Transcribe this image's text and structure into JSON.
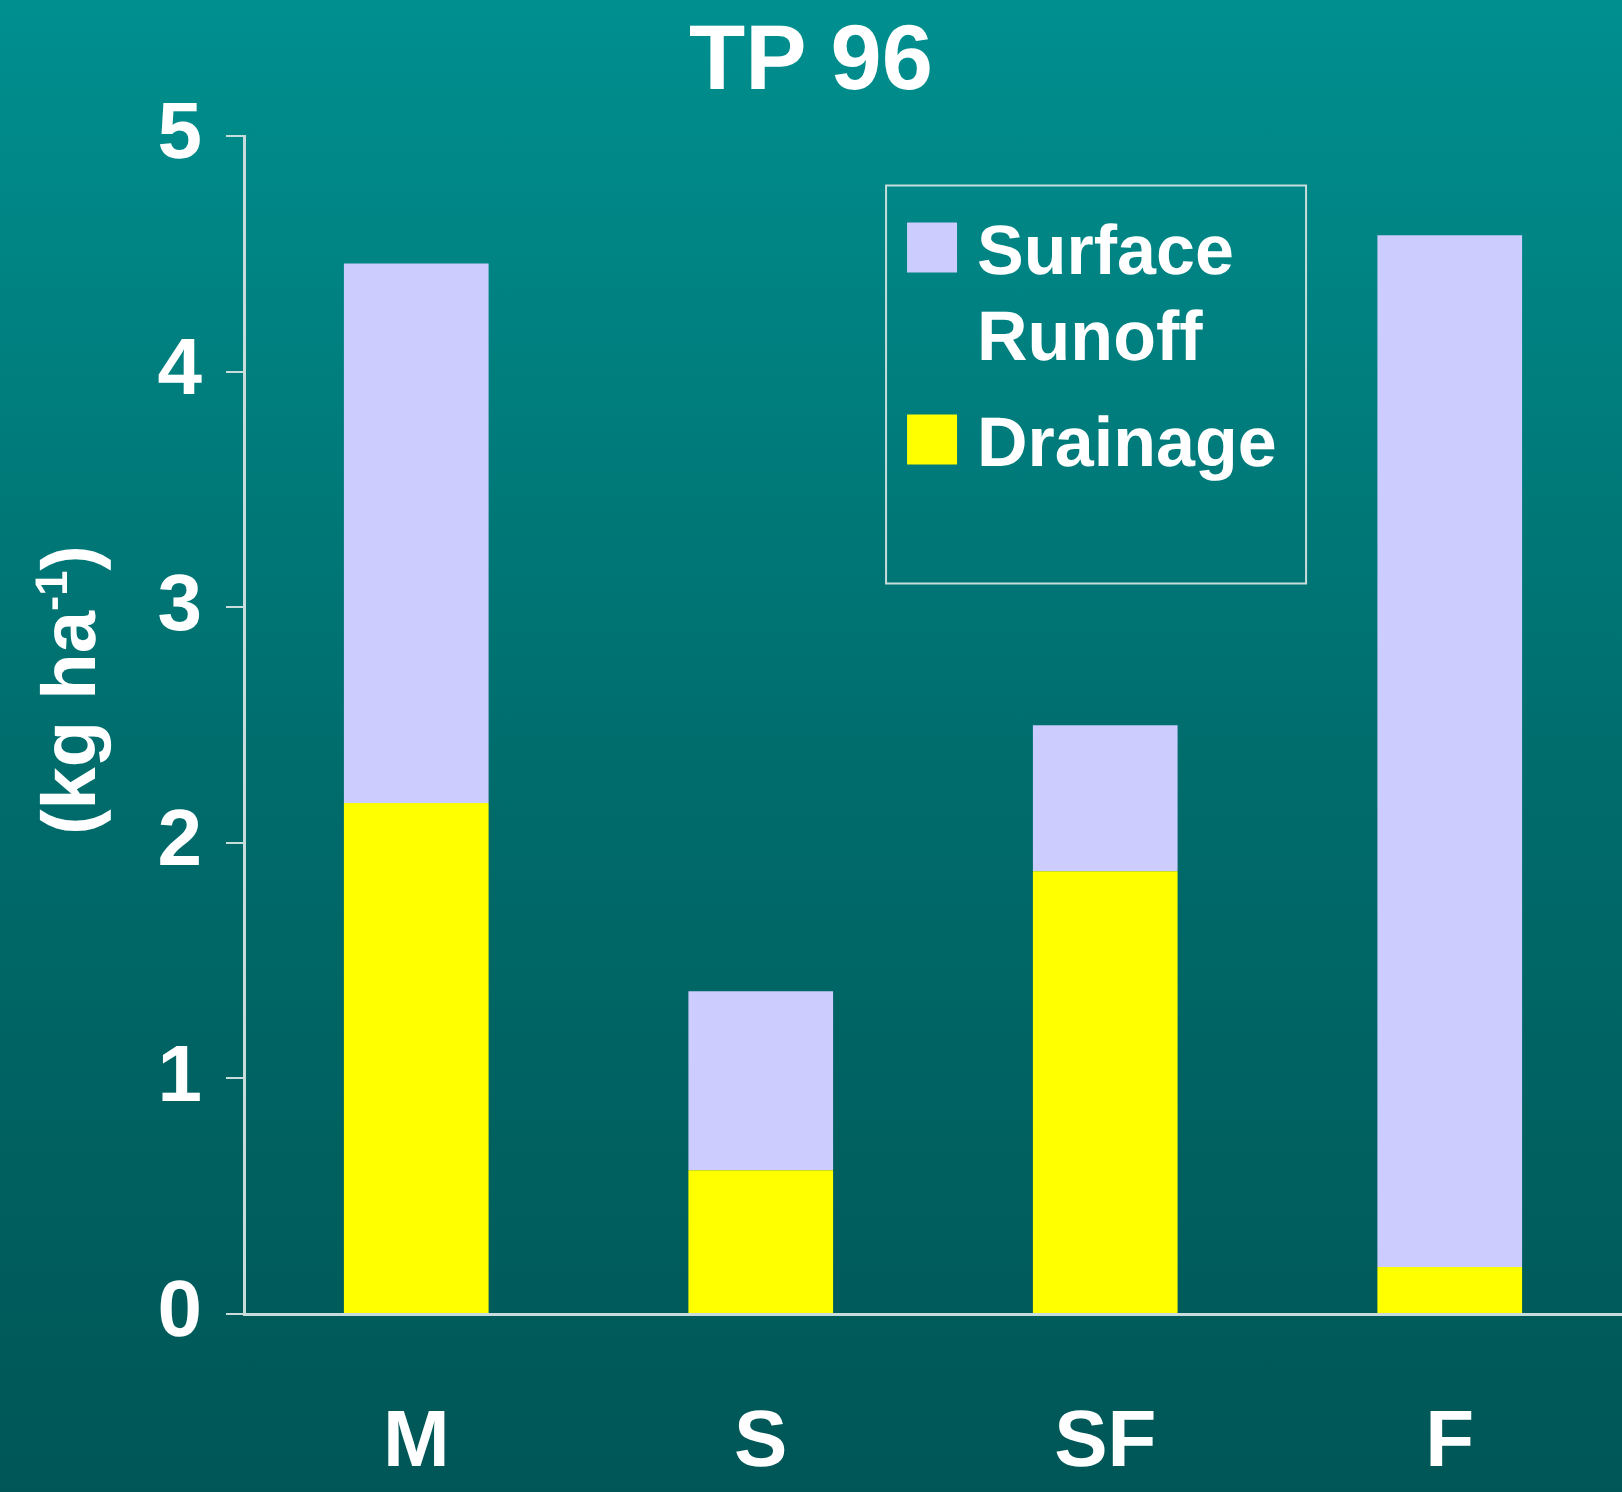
{
  "chart_data": {
    "type": "bar",
    "title": "TP 96",
    "ylabel": "(kg ha$^{-1}$)",
    "categories": [
      "M",
      "S",
      "SF",
      "F"
    ],
    "stacked": true,
    "series": [
      {
        "name": "Drainage",
        "color": "#ffff00",
        "values": [
          2.17,
          0.61,
          1.88,
          0.2
        ]
      },
      {
        "name": "Surface Runoff",
        "color": "#ccccff",
        "values": [
          2.29,
          0.76,
          0.62,
          4.38
        ]
      }
    ],
    "ylim": [
      0,
      5
    ],
    "yticks": [
      0,
      1,
      2,
      3,
      4,
      5
    ],
    "legend": "top right"
  }
}
